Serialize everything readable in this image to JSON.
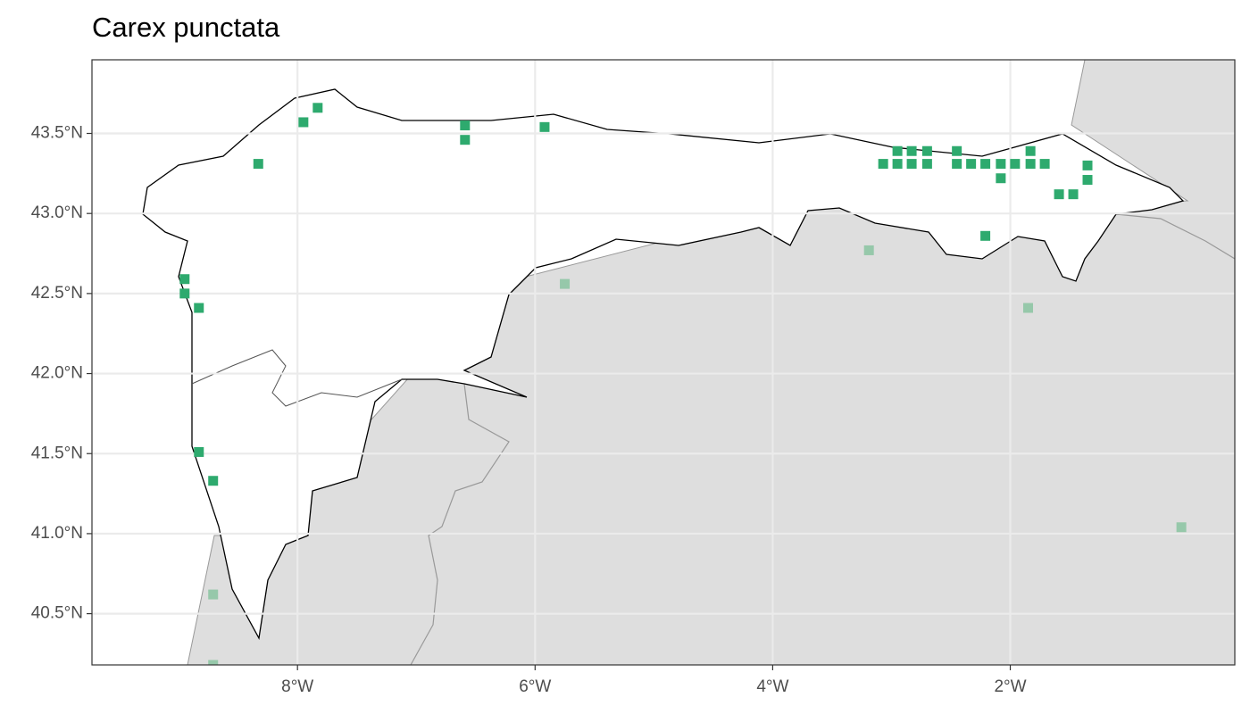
{
  "chart_data": {
    "type": "scatter",
    "title": "Carex punctata",
    "xlim": [
      -9.73,
      -0.11
    ],
    "ylim": [
      40.18,
      43.96
    ],
    "xticks": [
      {
        "value": -8,
        "label": "8°W"
      },
      {
        "value": -6,
        "label": "6°W"
      },
      {
        "value": -4,
        "label": "4°W"
      },
      {
        "value": -2,
        "label": "2°W"
      }
    ],
    "yticks": [
      {
        "value": 40.5,
        "label": "40.5°N"
      },
      {
        "value": 41.0,
        "label": "41.0°N"
      },
      {
        "value": 41.5,
        "label": "41.5°N"
      },
      {
        "value": 42.0,
        "label": "42.0°N"
      },
      {
        "value": 42.5,
        "label": "42.5°N"
      },
      {
        "value": 43.0,
        "label": "43.0°N"
      },
      {
        "value": 43.5,
        "label": "43.5°N"
      }
    ],
    "grid": true,
    "series": [
      {
        "color": "#2eaa6e",
        "x": [
          -7.95,
          -7.83,
          -8.33,
          -6.59,
          -6.59,
          -5.92,
          -8.95,
          -8.95,
          -8.83,
          -8.83,
          -8.71,
          -3.07,
          -2.95,
          -2.95,
          -2.83,
          -2.83,
          -2.7,
          -2.7,
          -2.45,
          -2.45,
          -2.33,
          -2.21,
          -2.08,
          -2.08,
          -1.96,
          -1.83,
          -1.83,
          -1.71,
          -1.59,
          -1.47,
          -1.35,
          -1.35,
          -2.21
        ],
        "values": [
          43.57,
          43.66,
          43.31,
          43.55,
          43.46,
          43.54,
          42.59,
          42.5,
          42.41,
          41.51,
          41.33,
          43.31,
          43.39,
          43.31,
          43.39,
          43.31,
          43.39,
          43.31,
          43.39,
          43.31,
          43.31,
          43.31,
          43.31,
          43.22,
          43.31,
          43.39,
          43.31,
          43.31,
          43.12,
          43.12,
          43.3,
          43.21,
          42.86
        ]
      },
      {
        "color": "#96c8aa",
        "x": [
          -3.19,
          -5.75,
          -1.85,
          -0.56,
          -8.71,
          -8.71
        ],
        "values": [
          42.77,
          42.56,
          42.41,
          41.04,
          40.62,
          40.18
        ]
      }
    ]
  }
}
